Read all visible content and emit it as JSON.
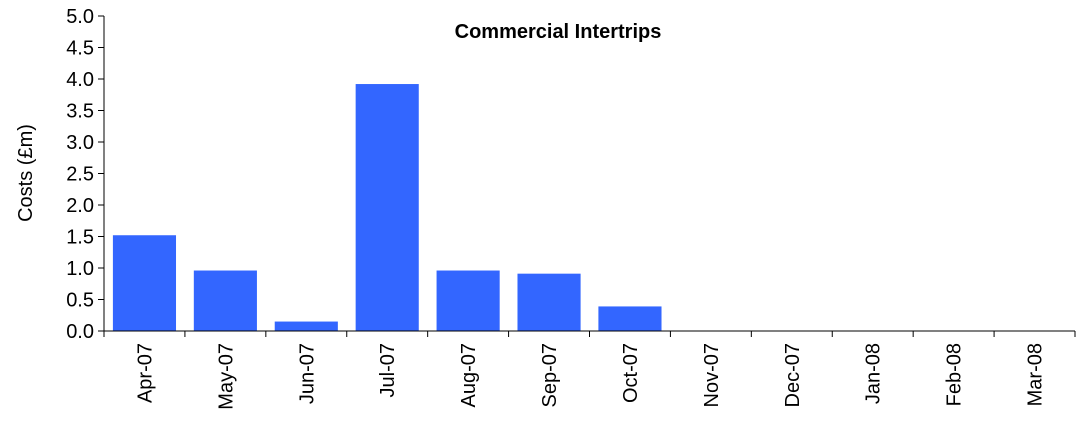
{
  "chart_data": {
    "type": "bar",
    "title": "Commercial Intertrips",
    "xlabel": "",
    "ylabel": "Costs (£m)",
    "categories": [
      "Apr-07",
      "May-07",
      "Jun-07",
      "Jul-07",
      "Aug-07",
      "Sep-07",
      "Oct-07",
      "Nov-07",
      "Dec-07",
      "Jan-08",
      "Feb-08",
      "Mar-08"
    ],
    "values": [
      1.52,
      0.96,
      0.15,
      3.92,
      0.96,
      0.91,
      0.39,
      0,
      0,
      0,
      0,
      0
    ],
    "ylim": [
      0,
      5.0
    ],
    "yticks": [
      "0.0",
      "0.5",
      "1.0",
      "1.5",
      "2.0",
      "2.5",
      "3.0",
      "3.5",
      "4.0",
      "4.5",
      "5.0"
    ],
    "grid": false,
    "legend": "none",
    "bar_color": "#3366FF"
  }
}
